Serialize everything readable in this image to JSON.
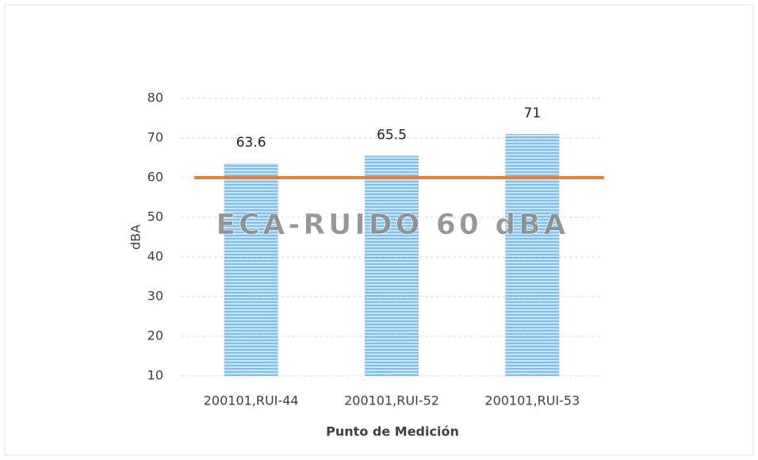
{
  "chart_data": {
    "type": "bar",
    "categories": [
      "200101,RUI-44",
      "200101,RUI-52",
      "200101,RUI-53"
    ],
    "values": [
      63.6,
      65.5,
      71
    ],
    "color": "#5fb0e6",
    "ylim": [
      10,
      80
    ],
    "yticks": [
      10,
      20,
      30,
      40,
      50,
      60,
      70,
      80
    ],
    "grid": true,
    "x_label": "Punto de Medición",
    "y_label": "dBA",
    "reference_line": {
      "value": 60,
      "color": "#ed7d31"
    },
    "annotation": "ECA-RUIDO 60 dBA"
  }
}
